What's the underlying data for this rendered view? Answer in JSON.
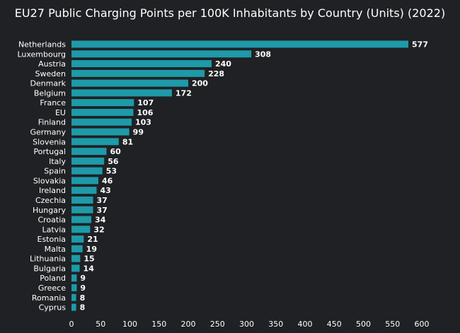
{
  "chart_data": {
    "type": "bar",
    "orientation": "horizontal",
    "title": "EU27 Public Charging Points per 100K Inhabitants by Country (Units) (2022)",
    "xlabel": "",
    "ylabel": "",
    "categories": [
      "Netherlands",
      "Luxembourg",
      "Austria",
      "Sweden",
      "Denmark",
      "Belgium",
      "France",
      "EU",
      "Finland",
      "Germany",
      "Slovenia",
      "Portugal",
      "Italy",
      "Spain",
      "Slovakia",
      "Ireland",
      "Czechia",
      "Hungary",
      "Croatia",
      "Latvia",
      "Estonia",
      "Malta",
      "Lithuania",
      "Bulgaria",
      "Poland",
      "Greece",
      "Romania",
      "Cyprus"
    ],
    "values": [
      577,
      308,
      240,
      228,
      200,
      172,
      107,
      106,
      103,
      99,
      81,
      60,
      56,
      53,
      46,
      43,
      37,
      37,
      34,
      32,
      21,
      19,
      15,
      14,
      9,
      9,
      8,
      8
    ],
    "xlim": [
      0,
      600
    ],
    "xticks": [
      0,
      50,
      100,
      150,
      200,
      250,
      300,
      350,
      400,
      450,
      500,
      550,
      600
    ],
    "grid": false,
    "legend": "none",
    "bar_color": "#1e9aa8",
    "background_color": "#1f2124",
    "text_color": "#ffffff"
  }
}
